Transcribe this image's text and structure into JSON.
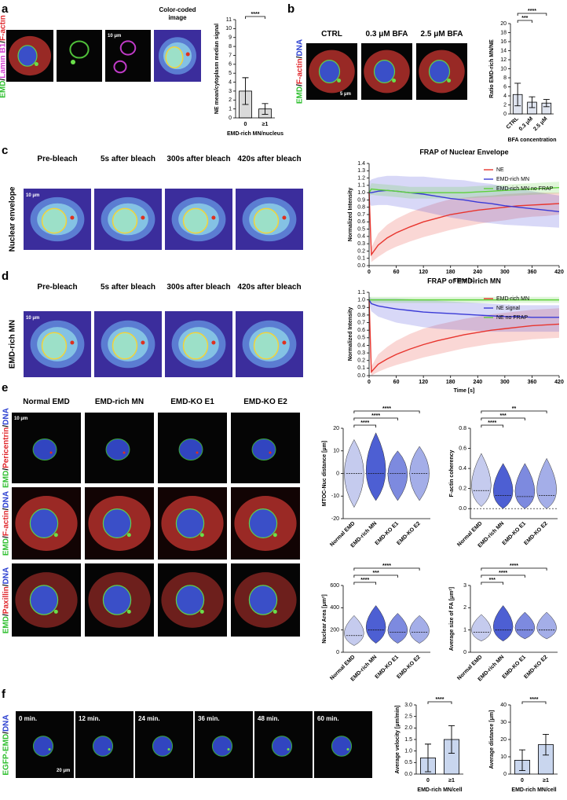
{
  "panel_labels": [
    "a",
    "b",
    "c",
    "d",
    "e",
    "f"
  ],
  "a": {
    "channel_label": [
      {
        "text": "EMD",
        "color": "#2fbf2f"
      },
      {
        "text": "/",
        "color": "#000000"
      },
      {
        "text": "Lamin B1",
        "color": "#d23fd2"
      },
      {
        "text": "/",
        "color": "#000000"
      },
      {
        "text": "F-actin",
        "color": "#e0282d"
      }
    ],
    "image_title": "Color-coded image",
    "scale_bar": "10 μm"
  },
  "b": {
    "columns": [
      "CTRL",
      "0.3  μM BFA",
      "2.5  μM BFA"
    ],
    "channel_label": [
      {
        "text": "EMD",
        "color": "#2fbf2f"
      },
      {
        "text": "/",
        "color": "#000000"
      },
      {
        "text": "F-actin",
        "color": "#e0282d"
      },
      {
        "text": "/",
        "color": "#000000"
      },
      {
        "text": "DNA",
        "color": "#2b3fd0"
      }
    ],
    "scale_bar": "5 μm"
  },
  "c": {
    "row_label": "Nuclear envelope",
    "columns": [
      "Pre-bleach",
      "5s after bleach",
      "300s after bleach",
      "420s after bleach"
    ],
    "scale_bar": "10 μm"
  },
  "d": {
    "row_label": "EMD-rich MN",
    "columns": [
      "Pre-bleach",
      "5s after bleach",
      "300s after bleach",
      "420s after bleach"
    ],
    "scale_bar": "10 μm"
  },
  "e": {
    "columns": [
      "Normal EMD",
      "EMD-rich MN",
      "EMD-KO E1",
      "EMD-KO E2"
    ],
    "scale_bar": "10 μm",
    "row_labels": [
      [
        {
          "text": "EMD",
          "color": "#2fbf2f"
        },
        {
          "text": "/",
          "color": "#000000"
        },
        {
          "text": "Pericentrin",
          "color": "#e0282d"
        },
        {
          "text": "/",
          "color": "#000000"
        },
        {
          "text": "DNA",
          "color": "#2b3fd0"
        }
      ],
      [
        {
          "text": "EMD",
          "color": "#2fbf2f"
        },
        {
          "text": "/",
          "color": "#000000"
        },
        {
          "text": "F-actin",
          "color": "#e0282d"
        },
        {
          "text": "/",
          "color": "#000000"
        },
        {
          "text": "DNA",
          "color": "#2b3fd0"
        }
      ],
      [
        {
          "text": "EMD",
          "color": "#2fbf2f"
        },
        {
          "text": "/",
          "color": "#000000"
        },
        {
          "text": "Paxillin",
          "color": "#e0282d"
        },
        {
          "text": "/",
          "color": "#000000"
        },
        {
          "text": "DNA",
          "color": "#2b3fd0"
        }
      ]
    ]
  },
  "f": {
    "row_label": [
      {
        "text": "EGFP-EMD",
        "color": "#2fbf2f"
      },
      {
        "text": "/",
        "color": "#000000"
      },
      {
        "text": "DNA",
        "color": "#2b3fd0"
      }
    ],
    "times": [
      "0 min.",
      "12 min.",
      "24 min.",
      "36 min.",
      "48 min.",
      "60 min."
    ],
    "scale_bar": "20 μm"
  },
  "chart_data": [
    {
      "type": "bar",
      "categories": [
        "0",
        "≥1"
      ],
      "values": [
        3.0,
        1.0
      ],
      "errors": [
        1.5,
        0.6
      ],
      "color": "#d9d9d9",
      "ylim": [
        0,
        11
      ],
      "yticks": [
        0,
        1,
        2,
        3,
        4,
        5,
        6,
        7,
        8,
        9,
        10,
        11
      ],
      "y_label": "NE mean/cytoplasm median signal",
      "x_label": "EMD-rich MN/nucleus",
      "significance": [
        "****"
      ]
    },
    {
      "type": "bar",
      "categories": [
        "CTRL",
        "0.3 μM",
        "2.5 μM"
      ],
      "values": [
        4.3,
        2.6,
        2.4
      ],
      "errors": [
        2.5,
        1.2,
        0.8
      ],
      "color": "#dfe4ef",
      "ylim": [
        0,
        20
      ],
      "yticks": [
        0,
        2,
        4,
        6,
        8,
        10,
        12,
        14,
        16,
        18,
        20
      ],
      "y_label": "Ratio EMD-rich MN/NE",
      "x_label": "BFA concentration",
      "significance": [
        "***",
        "****"
      ]
    },
    {
      "type": "line",
      "title": "FRAP of Nuclear Envelope",
      "x_label": "Time [s]",
      "y_label": "Normalized Intensity",
      "legend": "upper right",
      "x": [
        0,
        5,
        20,
        40,
        60,
        90,
        120,
        150,
        180,
        210,
        240,
        270,
        300,
        330,
        360,
        390,
        420
      ],
      "xlim": [
        0,
        420
      ],
      "xticks": [
        0,
        60,
        120,
        180,
        240,
        300,
        360,
        420
      ],
      "ylim": [
        0,
        1.4
      ],
      "yticks": [
        {
          "value": 0,
          "label": "0.0"
        },
        0.1,
        0.2,
        0.3,
        0.4,
        0.5,
        0.6,
        0.7,
        0.8,
        0.9,
        {
          "value": 1,
          "label": "1.0"
        },
        1.1,
        1.2,
        1.3,
        1.4
      ],
      "series": [
        {
          "name": "NE",
          "color": "#e8352e",
          "values": [
            1.0,
            0.15,
            0.28,
            0.38,
            0.45,
            0.53,
            0.6,
            0.65,
            0.7,
            0.73,
            0.76,
            0.78,
            0.8,
            0.82,
            0.83,
            0.84,
            0.85
          ],
          "lower": [
            0.9,
            0.05,
            0.12,
            0.2,
            0.26,
            0.33,
            0.39,
            0.44,
            0.49,
            0.53,
            0.57,
            0.6,
            0.62,
            0.65,
            0.67,
            0.68,
            0.7
          ],
          "upper": [
            1.1,
            0.25,
            0.44,
            0.56,
            0.64,
            0.73,
            0.8,
            0.86,
            0.91,
            0.93,
            0.95,
            0.96,
            0.98,
            0.99,
            1.0,
            1.0,
            1.0
          ]
        },
        {
          "name": "EMD-rich MN",
          "color": "#3a3ad6",
          "values": [
            1.0,
            1.0,
            1.02,
            1.03,
            1.02,
            1.0,
            0.98,
            0.95,
            0.92,
            0.9,
            0.87,
            0.85,
            0.82,
            0.8,
            0.78,
            0.76,
            0.74
          ],
          "lower": [
            0.85,
            0.82,
            0.83,
            0.83,
            0.81,
            0.78,
            0.74,
            0.7,
            0.66,
            0.63,
            0.6,
            0.58,
            0.56,
            0.55,
            0.54,
            0.53,
            0.52
          ],
          "upper": [
            1.15,
            1.18,
            1.21,
            1.23,
            1.23,
            1.22,
            1.22,
            1.2,
            1.18,
            1.17,
            1.14,
            1.12,
            1.08,
            1.05,
            1.02,
            0.99,
            0.96
          ]
        },
        {
          "name": "EMD-rich MN no FRAP",
          "color": "#5ed13a",
          "values": [
            1.0,
            1.05,
            1.04,
            1.03,
            1.02,
            1.0,
            1.0,
            1.0,
            1.0,
            1.0,
            1.01,
            1.02,
            1.03,
            1.04,
            1.05,
            1.06,
            1.07
          ],
          "lower": [
            0.95,
            0.97,
            0.96,
            0.95,
            0.94,
            0.92,
            0.92,
            0.92,
            0.92,
            0.92,
            0.93,
            0.94,
            0.95,
            0.96,
            0.97,
            0.98,
            0.99
          ],
          "upper": [
            1.05,
            1.13,
            1.12,
            1.11,
            1.1,
            1.08,
            1.08,
            1.08,
            1.08,
            1.08,
            1.09,
            1.1,
            1.11,
            1.12,
            1.13,
            1.14,
            1.15
          ]
        }
      ]
    },
    {
      "type": "line",
      "title": "FRAP of EMD-rich MN",
      "x_label": "Time [s]",
      "y_label": "Normalized Intensity",
      "legend": "upper right",
      "x": [
        0,
        5,
        20,
        40,
        60,
        90,
        120,
        150,
        180,
        210,
        240,
        270,
        300,
        330,
        360,
        390,
        420
      ],
      "xlim": [
        0,
        420
      ],
      "xticks": [
        0,
        60,
        120,
        180,
        240,
        300,
        360,
        420
      ],
      "ylim": [
        0,
        1.1
      ],
      "yticks": [
        {
          "value": 0,
          "label": "0.0"
        },
        0.1,
        0.2,
        0.3,
        0.4,
        0.5,
        0.6,
        0.7,
        0.8,
        0.9,
        {
          "value": 1,
          "label": "1.0"
        },
        1.1
      ],
      "series": [
        {
          "name": "EMD-rich MN",
          "color": "#e8352e",
          "values": [
            1.0,
            0.05,
            0.15,
            0.22,
            0.28,
            0.35,
            0.41,
            0.46,
            0.5,
            0.54,
            0.57,
            0.6,
            0.62,
            0.64,
            0.66,
            0.67,
            0.68
          ],
          "lower": [
            0.95,
            0.0,
            0.05,
            0.1,
            0.14,
            0.19,
            0.24,
            0.28,
            0.32,
            0.36,
            0.39,
            0.42,
            0.44,
            0.46,
            0.48,
            0.49,
            0.5
          ],
          "upper": [
            1.05,
            0.12,
            0.28,
            0.38,
            0.46,
            0.55,
            0.62,
            0.67,
            0.71,
            0.75,
            0.78,
            0.81,
            0.83,
            0.85,
            0.87,
            0.88,
            0.89
          ]
        },
        {
          "name": "NE signal",
          "color": "#3a3ad6",
          "values": [
            1.0,
            0.95,
            0.92,
            0.9,
            0.88,
            0.86,
            0.84,
            0.83,
            0.82,
            0.81,
            0.8,
            0.79,
            0.78,
            0.78,
            0.77,
            0.77,
            0.77
          ],
          "lower": [
            0.95,
            0.85,
            0.78,
            0.74,
            0.7,
            0.67,
            0.64,
            0.62,
            0.61,
            0.6,
            0.59,
            0.58,
            0.58,
            0.58,
            0.58,
            0.58,
            0.58
          ],
          "upper": [
            1.05,
            1.02,
            1.02,
            1.02,
            1.02,
            1.01,
            1.0,
            0.99,
            0.98,
            0.97,
            0.96,
            0.95,
            0.94,
            0.93,
            0.93,
            0.93,
            0.93
          ]
        },
        {
          "name": "NE no FRAP",
          "color": "#5ed13a",
          "values": [
            1.0,
            1.0,
            1.0,
            1.0,
            1.0,
            1.0,
            1.0,
            1.0,
            1.0,
            1.0,
            1.0,
            1.0,
            1.0,
            1.0,
            1.0,
            1.0,
            1.0
          ],
          "lower": [
            0.96,
            0.96,
            0.96,
            0.96,
            0.96,
            0.96,
            0.96,
            0.96,
            0.96,
            0.96,
            0.96,
            0.96,
            0.96,
            0.96,
            0.96,
            0.96,
            0.96
          ],
          "upper": [
            1.04,
            1.04,
            1.04,
            1.04,
            1.04,
            1.04,
            1.04,
            1.04,
            1.04,
            1.04,
            1.04,
            1.04,
            1.04,
            1.04,
            1.04,
            1.04,
            1.04
          ]
        }
      ]
    },
    {
      "type": "violin",
      "categories": [
        "Normal EMD",
        "EMD-rich MN",
        "EMD-KO E1",
        "EMD-KO E2"
      ],
      "values": [
        0,
        0,
        0,
        0
      ],
      "mins": [
        -15,
        -12,
        -12,
        -12
      ],
      "maxs": [
        15,
        18,
        10,
        12
      ],
      "colors": [
        "#c5cbee",
        "#4d5fd3",
        "#7d8adf",
        "#a4aee8"
      ],
      "ylim": [
        -20,
        20
      ],
      "yticks": [
        -20,
        -10,
        0,
        10,
        20
      ],
      "y_label": "MTOC-Nuc distance [μm]",
      "zero_line": true,
      "significance": [
        "****",
        "****",
        "****"
      ]
    },
    {
      "type": "violin",
      "categories": [
        "Normal EMD",
        "EMD-rich MN",
        "EMD-KO E1",
        "EMD-KO E2"
      ],
      "values": [
        0.18,
        0.13,
        0.12,
        0.13
      ],
      "mins": [
        0.02,
        0.0,
        0.0,
        0.0
      ],
      "maxs": [
        0.55,
        0.45,
        0.45,
        0.5
      ],
      "colors": [
        "#c5cbee",
        "#4d5fd3",
        "#7d8adf",
        "#a4aee8"
      ],
      "ylim": [
        -0.1,
        0.8
      ],
      "yticks": [
        {
          "value": 0,
          "label": "0.0"
        },
        0.2,
        0.4,
        0.6,
        0.8
      ],
      "y_label": "F-actin coherency",
      "zero_line": true,
      "significance": [
        "****",
        "***",
        "**"
      ]
    },
    {
      "type": "violin",
      "categories": [
        "Normal EMD",
        "EMD-rich MN",
        "EMD-KO E1",
        "EMD-KO E2"
      ],
      "values": [
        150,
        200,
        180,
        180
      ],
      "mins": [
        60,
        80,
        80,
        80
      ],
      "maxs": [
        330,
        420,
        350,
        330
      ],
      "colors": [
        "#c5cbee",
        "#4d5fd3",
        "#7d8adf",
        "#a4aee8"
      ],
      "ylim": [
        0,
        600
      ],
      "yticks": [
        0,
        200,
        400,
        600
      ],
      "y_label": "Nuclear Area [μm²]",
      "zero_line": false,
      "significance": [
        "****",
        "***",
        "****"
      ]
    },
    {
      "type": "violin",
      "categories": [
        "Normal EMD",
        "EMD-rich MN",
        "EMD-KO E1",
        "EMD-KO E2"
      ],
      "values": [
        0.9,
        1.0,
        1.0,
        1.0
      ],
      "mins": [
        0.5,
        0.5,
        0.6,
        0.6
      ],
      "maxs": [
        1.7,
        2.1,
        1.8,
        1.8
      ],
      "colors": [
        "#c5cbee",
        "#4d5fd3",
        "#7d8adf",
        "#a4aee8"
      ],
      "ylim": [
        0,
        3
      ],
      "yticks": [
        0,
        1,
        2,
        3
      ],
      "y_label": "Average size of FA [μm²]",
      "zero_line": false,
      "significance": [
        "***",
        "****",
        "****"
      ]
    },
    {
      "type": "bar",
      "categories": [
        "0",
        "≥1"
      ],
      "values": [
        0.7,
        1.5
      ],
      "errors": [
        0.6,
        0.6
      ],
      "color": "#c9d6ee",
      "ylim": [
        0,
        3
      ],
      "yticks": [
        {
          "value": 0,
          "label": "0.0"
        },
        0.5,
        {
          "value": 1,
          "label": "1.0"
        },
        1.5,
        {
          "value": 2,
          "label": "2.0"
        },
        2.5,
        {
          "value": 3,
          "label": "3.0"
        }
      ],
      "y_label": "Average velocity [μm/min]",
      "x_label": "EMD-rich MN/cell",
      "significance": [
        "****"
      ]
    },
    {
      "type": "bar",
      "categories": [
        "0",
        "≥1"
      ],
      "values": [
        8,
        17
      ],
      "errors": [
        6,
        6
      ],
      "color": "#c9d6ee",
      "ylim": [
        0,
        40
      ],
      "yticks": [
        0,
        10,
        20,
        30,
        40
      ],
      "y_label": "Average distance [μm]",
      "x_label": "EMD-rich MN/cell",
      "significance": [
        "****"
      ]
    }
  ]
}
